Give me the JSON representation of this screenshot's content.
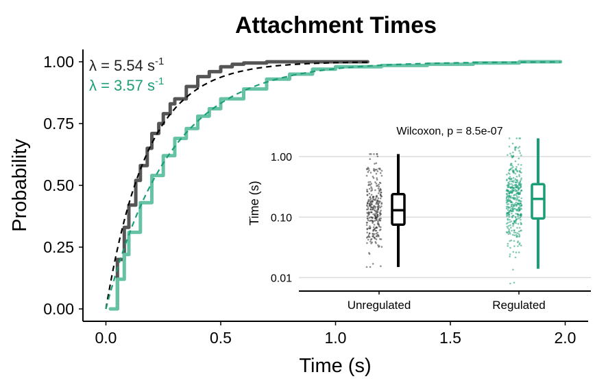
{
  "colors": {
    "unregulated": "#555555",
    "regulated": "#66c2a5",
    "regulated_dark": "#1b9e77",
    "fit": "#000000",
    "axis": "#000000",
    "grid": "#dcdcdc"
  },
  "chart_data": [
    {
      "type": "line",
      "title": "Attachment Times",
      "xlabel": "Time (s)",
      "ylabel": "Probability",
      "xlim": [
        -0.1,
        2.1
      ],
      "ylim": [
        -0.05,
        1.05
      ],
      "xticks": [
        0.0,
        0.5,
        1.0,
        1.5,
        2.0
      ],
      "xtick_labels": [
        "0.0",
        "0.5",
        "1.0",
        "1.5",
        "2.0"
      ],
      "yticks": [
        0.0,
        0.25,
        0.5,
        0.75,
        1.0
      ],
      "ytick_labels": [
        "0.00",
        "0.25",
        "0.50",
        "0.75",
        "1.00"
      ],
      "grid": false,
      "annotations": [
        {
          "lambda_symbol": "λ",
          "text": " = 5.54 s",
          "superscript": "-1",
          "series": "Unregulated"
        },
        {
          "lambda_symbol": "λ",
          "text": " = 3.57 s",
          "superscript": "-1",
          "series": "Regulated"
        }
      ],
      "series": [
        {
          "kind": "empirical_cdf",
          "group": "Unregulated",
          "x": [
            0.02,
            0.05,
            0.08,
            0.1,
            0.13,
            0.15,
            0.18,
            0.2,
            0.23,
            0.25,
            0.28,
            0.3,
            0.35,
            0.4,
            0.45,
            0.5,
            0.55,
            0.6,
            0.7,
            0.8,
            0.9,
            1.0,
            1.14
          ],
          "y": [
            0.0,
            0.2,
            0.33,
            0.42,
            0.52,
            0.58,
            0.65,
            0.71,
            0.75,
            0.79,
            0.83,
            0.85,
            0.9,
            0.94,
            0.96,
            0.98,
            0.99,
            0.995,
            1.0,
            1.0,
            1.0,
            1.0,
            1.0
          ]
        },
        {
          "kind": "exponential_fit",
          "group": "Unregulated",
          "rate": 5.54,
          "x_max": 1.14
        },
        {
          "kind": "empirical_cdf",
          "group": "Regulated",
          "x": [
            0.02,
            0.05,
            0.08,
            0.1,
            0.15,
            0.2,
            0.25,
            0.3,
            0.35,
            0.4,
            0.45,
            0.5,
            0.6,
            0.7,
            0.8,
            0.9,
            1.0,
            1.2,
            1.4,
            1.6,
            1.8,
            1.98
          ],
          "y": [
            0.0,
            0.12,
            0.22,
            0.31,
            0.43,
            0.54,
            0.62,
            0.69,
            0.73,
            0.78,
            0.81,
            0.85,
            0.89,
            0.93,
            0.95,
            0.97,
            0.98,
            0.985,
            0.99,
            0.995,
            1.0,
            1.0
          ]
        },
        {
          "kind": "exponential_fit",
          "group": "Regulated",
          "rate": 3.57,
          "x_max": 1.98
        }
      ]
    },
    {
      "type": "box_jitter",
      "ylabel": "Time (s)",
      "yscale": "log",
      "ylim": [
        0.006,
        3.0
      ],
      "yticks": [
        0.01,
        0.1,
        1.0
      ],
      "ytick_labels": [
        "0.01",
        "0.10",
        "1.00"
      ],
      "grid": true,
      "annotation": "Wilcoxon, p = 8.5e-07",
      "categories": [
        "Unregulated",
        "Regulated"
      ],
      "boxes": [
        {
          "category": "Unregulated",
          "whisker_low": 0.015,
          "q1": 0.075,
          "median": 0.13,
          "q3": 0.24,
          "whisker_high": 1.1,
          "points_median": 0.13,
          "points_low": 0.015,
          "points_high": 1.1
        },
        {
          "category": "Regulated",
          "whisker_low": 0.014,
          "q1": 0.095,
          "median": 0.2,
          "q3": 0.35,
          "whisker_high": 2.0,
          "points_median": 0.2,
          "points_low": 0.008,
          "points_high": 2.0
        }
      ]
    }
  ]
}
